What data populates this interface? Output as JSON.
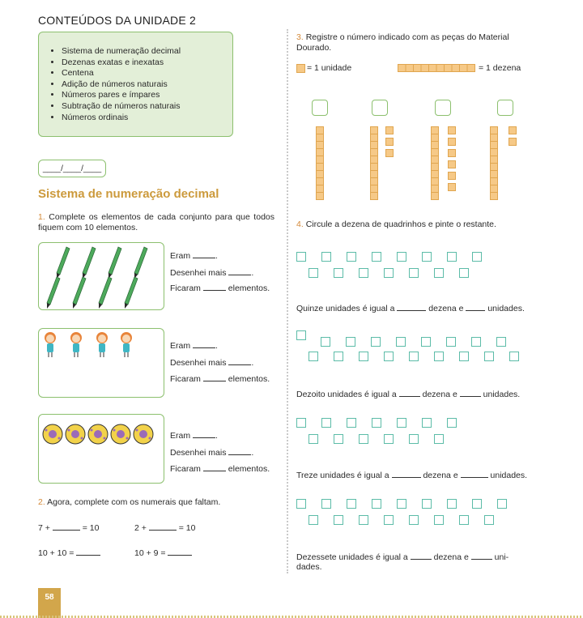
{
  "unit_title": "CONTEÚDOS DA UNIDADE 2",
  "contents": [
    "Sistema de numeração decimal",
    "Dezenas exatas e inexatas",
    "Centena",
    "Adição de números naturais",
    "Números pares e ímpares",
    "Subtração de números naturais",
    "Números ordinais"
  ],
  "date_text": "____/____/____",
  "section_title": "Sistema de numeração decimal",
  "q1": {
    "number": "1.",
    "text": "Complete os elementos de cada conjunto para que todos fiquem com 10 elementos."
  },
  "sets": [
    {
      "line1": "Eram",
      "line2": "Desenhei mais",
      "line3": "Ficaram",
      "line3_end": "elementos.",
      "item_icon": "pencil-icon",
      "count": 8
    },
    {
      "line1": "Eram",
      "line2": "Desenhei mais",
      "line3": "Ficaram",
      "line3_end": "elementos.",
      "item_icon": "doll-icon",
      "count": 4
    },
    {
      "line1": "Eram",
      "line2": "Desenhei mais",
      "line3": "Ficaram",
      "line3_end": "elementos.",
      "item_icon": "ball-icon",
      "count": 5
    }
  ],
  "q2": {
    "number": "2.",
    "text": "Agora, complete com os numerais que faltam."
  },
  "equations": [
    {
      "left": "7 +",
      "right": "= 10"
    },
    {
      "left": "2 +",
      "right": "= 10"
    },
    {
      "left": "10 + 10 =",
      "right": ""
    },
    {
      "left": "10 + 9 =",
      "right": ""
    }
  ],
  "q3": {
    "number": "3.",
    "text": "Registre o número indicado com as peças do Material Dourado.",
    "legend_unit": "= 1 unidade",
    "legend_ten": "= 1 dezena"
  },
  "q4": {
    "number": "4.",
    "text": "Circule a dezena de quadrinhos e pinte o restante."
  },
  "rows": [
    {
      "a": "Quinze unidades é igual a",
      "b": "dezena e",
      "c": "unidades."
    },
    {
      "a": "Dezoito unidades é igual a",
      "b": "dezena e",
      "c": "unidades."
    },
    {
      "a": "Treze unidades é igual a",
      "b": "dezena e",
      "c": "unidades."
    },
    {
      "a": "Dezessete unidades é igual a",
      "b": "dezena e",
      "c": "uni-",
      "d": "dades."
    }
  ],
  "page_number": "58",
  "colors": {
    "accent_green": "#8cc06e",
    "box_fill": "#e3efd8",
    "title_gold": "#cc9a3c",
    "square_teal": "#5cbca8",
    "cube_orange": "#f6c987"
  }
}
